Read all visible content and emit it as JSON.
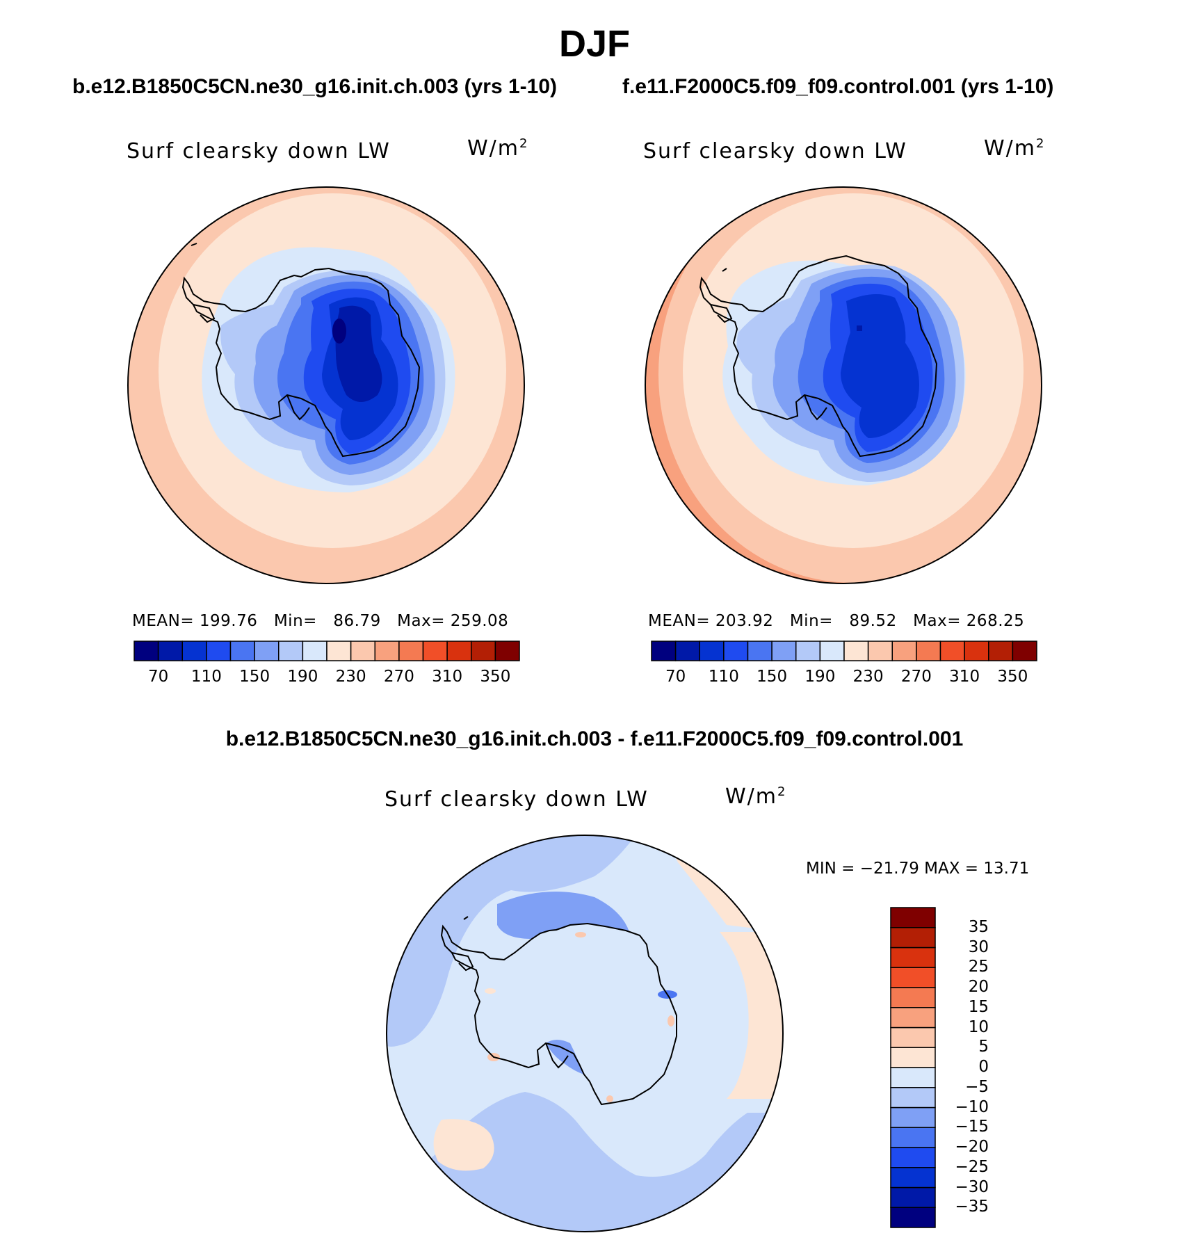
{
  "figure_title": "DJF",
  "panels": [
    {
      "case_title": "b.e12.B1850C5CN.ne30_g16.init.ch.003 (yrs 1-10)",
      "variable": "Surf clearsky down LW",
      "units": "W/m",
      "units_exp": "2",
      "stats": {
        "mean_label": "MEAN=",
        "mean": "199.76",
        "min_label": "Min=",
        "min": "86.79",
        "max_label": "Max=",
        "max": "259.08"
      }
    },
    {
      "case_title": "f.e11.F2000C5.f09_f09.control.001 (yrs 1-10)",
      "variable": "Surf clearsky down LW",
      "units": "W/m",
      "units_exp": "2",
      "stats": {
        "mean_label": "MEAN=",
        "mean": "203.92",
        "min_label": "Min=",
        "min": "89.52",
        "max_label": "Max=",
        "max": "268.25"
      }
    }
  ],
  "diff_panel": {
    "title": "b.e12.B1850C5CN.ne30_g16.init.ch.003 - f.e11.F2000C5.f09_f09.control.001",
    "variable": "Surf clearsky down LW",
    "units": "W/m",
    "units_exp": "2",
    "minmax": "MIN = −21.79 MAX =  13.71"
  },
  "abs_colorbar": {
    "colors": [
      "#00007f",
      "#0019a8",
      "#0533d1",
      "#1f4bf0",
      "#4a75f2",
      "#7fa0f5",
      "#b3c9f8",
      "#d9e8fb",
      "#fde5d4",
      "#fbc8ae",
      "#f8a17e",
      "#f47a52",
      "#f14f28",
      "#d9320e",
      "#b31f05",
      "#7f0000"
    ],
    "tick_labels": [
      "70",
      "110",
      "150",
      "190",
      "230",
      "270",
      "310",
      "350"
    ]
  },
  "diff_colorbar": {
    "colors": [
      "#00007f",
      "#0019a8",
      "#0533d1",
      "#1f4bf0",
      "#4a75f2",
      "#7fa0f5",
      "#b3c9f8",
      "#d9e8fb",
      "#fde5d4",
      "#fbc8ae",
      "#f8a17e",
      "#f47a52",
      "#f14f28",
      "#d9320e",
      "#b31f05",
      "#7f0000"
    ],
    "tick_labels": [
      "−35",
      "−30",
      "−25",
      "−20",
      "−15",
      "−10",
      "−5",
      "0",
      "5",
      "10",
      "15",
      "20",
      "25",
      "30",
      "35"
    ]
  },
  "chart_data": [
    {
      "type": "heatmap",
      "title": "b.e12.B1850C5CN.ne30_g16.init.ch.003 (yrs 1-10)",
      "field": "Surf clearsky down LW",
      "units": "W/m2",
      "projection": "south polar stereographic",
      "levels": [
        70,
        90,
        110,
        130,
        150,
        170,
        190,
        210,
        230,
        250,
        270,
        290,
        310,
        330,
        350
      ],
      "mean": 199.76,
      "min": 86.79,
      "max": 259.08
    },
    {
      "type": "heatmap",
      "title": "f.e11.F2000C5.f09_f09.control.001 (yrs 1-10)",
      "field": "Surf clearsky down LW",
      "units": "W/m2",
      "projection": "south polar stereographic",
      "levels": [
        70,
        90,
        110,
        130,
        150,
        170,
        190,
        210,
        230,
        250,
        270,
        290,
        310,
        330,
        350
      ],
      "mean": 203.92,
      "min": 89.52,
      "max": 268.25
    },
    {
      "type": "heatmap",
      "title": "b.e12.B1850C5CN.ne30_g16.init.ch.003 - f.e11.F2000C5.f09_f09.control.001",
      "field": "Surf clearsky down LW",
      "units": "W/m2",
      "projection": "south polar stereographic",
      "levels": [
        -35,
        -30,
        -25,
        -20,
        -15,
        -10,
        -5,
        0,
        5,
        10,
        15,
        20,
        25,
        30,
        35
      ],
      "min": -21.79,
      "max": 13.71
    }
  ]
}
